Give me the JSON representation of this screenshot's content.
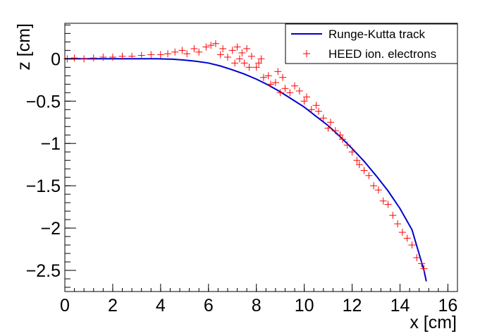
{
  "chart_data": {
    "type": "scatter",
    "xlabel": "x [cm]",
    "ylabel": "z [cm]",
    "xlim": [
      0,
      16.4
    ],
    "ylim": [
      -2.75,
      0.42
    ],
    "grid": false,
    "legend_position": "top-right",
    "x_ticks": [
      {
        "value": 0,
        "label": "0"
      },
      {
        "value": 2,
        "label": "2"
      },
      {
        "value": 4,
        "label": "4"
      },
      {
        "value": 6,
        "label": "6"
      },
      {
        "value": 8,
        "label": "8"
      },
      {
        "value": 10,
        "label": "10"
      },
      {
        "value": 12,
        "label": "12"
      },
      {
        "value": 14,
        "label": "14"
      },
      {
        "value": 16,
        "label": "16"
      }
    ],
    "y_ticks": [
      {
        "value": 0,
        "label": "0"
      },
      {
        "value": -0.5,
        "label": "−0.5"
      },
      {
        "value": -1,
        "label": "−1"
      },
      {
        "value": -1.5,
        "label": "−1.5"
      },
      {
        "value": -2,
        "label": "−2"
      },
      {
        "value": -2.5,
        "label": "−2.5"
      }
    ],
    "series": [
      {
        "name": "Runge-Kutta track",
        "kind": "line",
        "color": "#0000cc",
        "x": [
          0,
          1,
          2,
          3,
          3.8,
          4.5,
          5,
          5.5,
          6,
          6.5,
          7,
          7.5,
          8,
          8.5,
          9,
          9.5,
          10,
          10.5,
          11,
          11.5,
          12,
          12.5,
          13,
          13.5,
          14,
          14.5,
          15,
          15.1
        ],
        "y": [
          0,
          0,
          0,
          0,
          0,
          -0.005,
          -0.015,
          -0.03,
          -0.05,
          -0.085,
          -0.13,
          -0.18,
          -0.24,
          -0.31,
          -0.39,
          -0.48,
          -0.57,
          -0.68,
          -0.79,
          -0.92,
          -1.06,
          -1.21,
          -1.38,
          -1.56,
          -1.77,
          -2.02,
          -2.5,
          -2.63
        ]
      },
      {
        "name": "HEED ion. electrons",
        "kind": "markers",
        "marker": "+",
        "color": "#ff0000",
        "x": [
          0.1,
          0.4,
          0.8,
          1.2,
          1.6,
          2.0,
          2.4,
          2.8,
          3.2,
          3.6,
          4.0,
          4.3,
          4.6,
          4.9,
          5.1,
          5.4,
          5.6,
          5.9,
          6.1,
          6.3,
          6.5,
          6.6,
          6.8,
          7.0,
          7.1,
          7.2,
          7.3,
          7.4,
          7.5,
          7.6,
          7.7,
          7.8,
          8.0,
          8.1,
          8.2,
          8.3,
          8.5,
          8.6,
          8.8,
          8.9,
          9.0,
          9.1,
          9.2,
          9.4,
          9.6,
          9.8,
          10.0,
          10.1,
          10.3,
          10.5,
          10.6,
          10.8,
          11.0,
          11.1,
          11.3,
          11.5,
          11.6,
          11.8,
          12.0,
          12.2,
          12.3,
          12.5,
          12.7,
          12.9,
          13.1,
          13.3,
          13.5,
          13.7,
          13.9,
          14.1,
          14.3,
          14.5,
          14.7,
          14.9,
          15.0
        ],
        "y": [
          0.0,
          0.01,
          0.0,
          0.01,
          0.02,
          0.02,
          0.03,
          0.03,
          0.04,
          0.05,
          0.05,
          0.06,
          0.08,
          0.1,
          0.06,
          0.12,
          0.08,
          0.14,
          0.16,
          0.18,
          0.05,
          0.12,
          0.02,
          0.1,
          -0.05,
          0.14,
          0.0,
          0.07,
          -0.05,
          0.12,
          -0.1,
          0.03,
          -0.1,
          -0.05,
          0.0,
          -0.22,
          -0.2,
          -0.3,
          -0.28,
          -0.15,
          -0.4,
          -0.22,
          -0.35,
          -0.4,
          -0.32,
          -0.38,
          -0.5,
          -0.45,
          -0.6,
          -0.55,
          -0.62,
          -0.7,
          -0.82,
          -0.75,
          -0.85,
          -0.9,
          -0.95,
          -1.02,
          -1.1,
          -1.2,
          -1.25,
          -1.32,
          -1.38,
          -1.5,
          -1.55,
          -1.68,
          -1.72,
          -1.85,
          -1.95,
          -2.05,
          -2.12,
          -2.2,
          -2.35,
          -2.42,
          -2.48
        ]
      }
    ]
  }
}
